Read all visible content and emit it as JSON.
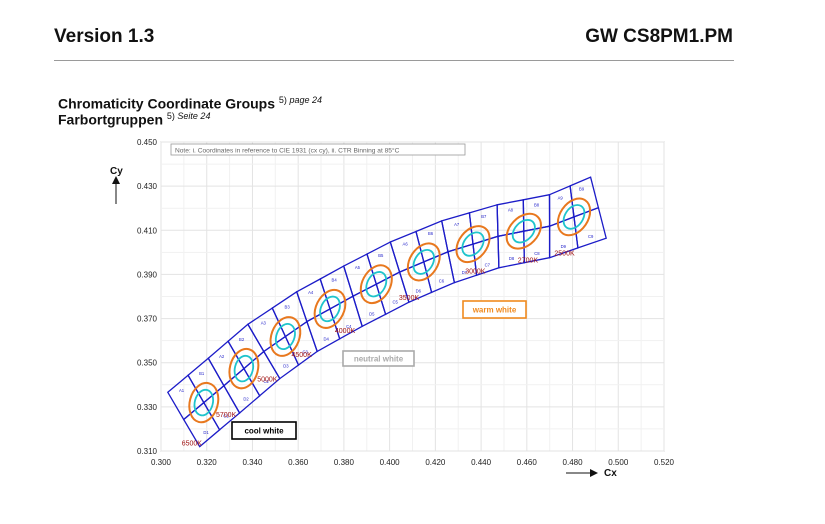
{
  "header": {
    "version": "Version 1.3",
    "part_number": "GW CS8PM1.PM"
  },
  "section": {
    "title": "Chromaticity Coordinate Groups",
    "title_ref_num": "5)",
    "title_ref_page": "page 24",
    "subtitle": "Farbortgruppen",
    "subtitle_ref_num": "5)",
    "subtitle_ref_page": "Seite 24"
  },
  "chart_data": {
    "type": "scatter",
    "note": "Note: i. Coordinates in reference to CIE 1931 (cx cy), ii. CTR Binning at 85°C",
    "xlabel": "Cx",
    "ylabel": "Cy",
    "xlim": [
      0.3,
      0.52
    ],
    "ylim": [
      0.31,
      0.45
    ],
    "x_ticks": [
      "0.300",
      "0.320",
      "0.340",
      "0.360",
      "0.380",
      "0.400",
      "0.420",
      "0.440",
      "0.460",
      "0.480",
      "0.500",
      "0.520"
    ],
    "y_ticks": [
      "0.310",
      "0.330",
      "0.350",
      "0.370",
      "0.390",
      "0.410",
      "0.430",
      "0.450"
    ],
    "grid": true,
    "colors": {
      "bin_outline": "#1c1cc8",
      "ellipse_outer": "#e8781e",
      "ellipse_inner": "#1fc4cc",
      "cct_label": "#a01414",
      "cool": "#000000",
      "neutral": "#aaaaaa",
      "warm": "#f08a1e"
    },
    "cct_points": [
      {
        "label": "6500K",
        "x": 0.313,
        "y": 0.327
      },
      {
        "label": "5700K",
        "x": 0.328,
        "y": 0.34
      },
      {
        "label": "5000K",
        "x": 0.346,
        "y": 0.356
      },
      {
        "label": "4500K",
        "x": 0.361,
        "y": 0.367
      },
      {
        "label": "4000K",
        "x": 0.38,
        "y": 0.378
      },
      {
        "label": "3500K",
        "x": 0.408,
        "y": 0.393
      },
      {
        "label": "3000K",
        "x": 0.437,
        "y": 0.405
      },
      {
        "label": "2700K",
        "x": 0.46,
        "y": 0.41
      },
      {
        "label": "2500K",
        "x": 0.476,
        "y": 0.413
      }
    ],
    "bin_labels": [
      "A1",
      "B1",
      "C1",
      "D1",
      "A2",
      "B2",
      "C2",
      "D2",
      "A3",
      "B3",
      "C3",
      "D3",
      "A4",
      "B4",
      "C4",
      "D4",
      "A5",
      "B5",
      "C5",
      "D5",
      "A6",
      "B6",
      "C6",
      "D6",
      "A7",
      "B7",
      "C7",
      "D7",
      "A8",
      "B8",
      "C8",
      "D8",
      "A9",
      "B9",
      "C9",
      "D9"
    ],
    "groups": [
      {
        "label": "cool white"
      },
      {
        "label": "neutral white"
      },
      {
        "label": "warm white"
      }
    ]
  }
}
